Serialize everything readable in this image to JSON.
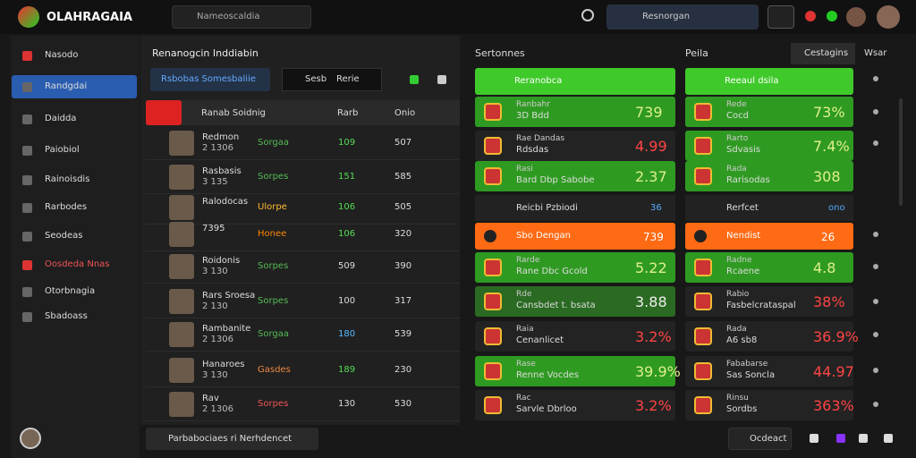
{
  "header": {
    "logo": "OLAHRAGAIA",
    "search": "Nameoscaldia",
    "tab": "Resnorgan"
  },
  "sidebar": {
    "items": [
      "Nasodo",
      "Randgdai",
      "Daidda",
      "Paiobiol",
      "Rainoisdis",
      "Rarbodes",
      "Seodeas",
      "Oosdeda Nnas",
      "Otorbnagia",
      "Sbadoass"
    ]
  },
  "middle": {
    "title": "Renanogcin Inddiabin",
    "filter": "Rsbobas Somesbaliie",
    "sort1": "Sesb",
    "sort2": "Rerie",
    "columns": [
      "Ranab Soidnig",
      "Rarb",
      "Onio"
    ],
    "rows": [
      {
        "name": "Redmon",
        "sub": "2 1306",
        "team": "Sorgaa",
        "v1": "109",
        "v2": "507"
      },
      {
        "name": "Rasbasis",
        "sub": "3 135",
        "team": "Sorpes",
        "v1": "151",
        "v2": "585"
      },
      {
        "name": "Ralodocas",
        "sub": "",
        "team": "Ulorpe",
        "v1": "106",
        "v2": "505"
      },
      {
        "name": "7395",
        "sub": "",
        "team": "Honee",
        "v1": "106",
        "v2": "320"
      },
      {
        "name": "Roidonis",
        "sub": "3 130",
        "team": "Sorpes",
        "v1": "509",
        "v2": "390"
      },
      {
        "name": "Rars Sroesa",
        "sub": "2 130",
        "team": "Sorpes",
        "v1": "100",
        "v2": "317"
      },
      {
        "name": "Rambanite",
        "sub": "2 1306",
        "team": "Sorgaa",
        "v1": "180",
        "v2": "539"
      },
      {
        "name": "Hanaroes",
        "sub": "3 130",
        "team": "Gasdes",
        "v1": "189",
        "v2": "230"
      },
      {
        "name": "Rav",
        "sub": "2 1306",
        "team": "Sorpes",
        "v1": "130",
        "v2": "530"
      }
    ],
    "footer": "Parbabociaes  ri  Nerhdencet"
  },
  "col1": {
    "title": "Sertonnes",
    "head1": "Reranobca",
    "group": "Reicbi Pzbiodi",
    "group_value": "36",
    "head2": "Sbo Dengan",
    "head2_value": "739",
    "cards": [
      {
        "name": "Ranbahr",
        "sub": "3D Bdd",
        "value": "739",
        "style": "green"
      },
      {
        "name": "Rae Dandas",
        "sub": "Rdsdas",
        "value": "4.99",
        "style": "dark"
      },
      {
        "name": "Rasi",
        "sub": "Bard Dbp Sabobe",
        "value": "2.37",
        "style": "green"
      },
      {
        "name": "Rarde",
        "sub": "Rane Dbc Gcold",
        "value": "5.22",
        "style": "green"
      },
      {
        "name": "Rde",
        "sub": "Cansbdet t. bsata",
        "value": "3.88",
        "style": "dgreen"
      },
      {
        "name": "Raia",
        "sub": "Cenanlicet",
        "value": "3.2%",
        "style": "dark"
      },
      {
        "name": "Rase",
        "sub": "Renne Vocdes",
        "value": "39.9%",
        "style": "green"
      },
      {
        "name": "Rac",
        "sub": "Sarvle Dbrloo",
        "value": "3.2%",
        "style": "dark"
      }
    ]
  },
  "col2": {
    "title": "Peila",
    "tab1": "Cestagins",
    "tab2": "Wsar",
    "head1": "Reeaul dsila",
    "group": "Rerfcet",
    "group_value": "ono",
    "head2": "Nendist",
    "head2_value": "26",
    "cards": [
      {
        "name": "Rede",
        "sub": "Cocd",
        "value": "73%",
        "style": "green"
      },
      {
        "name": "Rarto",
        "sub": "Sdvasis",
        "value": "7.4%",
        "style": "green"
      },
      {
        "name": "Rada",
        "sub": "Rarisodas",
        "value": "308",
        "style": "green"
      },
      {
        "name": "Radne",
        "sub": "Rcaene",
        "value": "4.8",
        "style": "green"
      },
      {
        "name": "Rabio",
        "sub": "Fasbelcrataspal",
        "value": "38%",
        "style": "dark"
      },
      {
        "name": "Rada",
        "sub": "A6 sb8",
        "value": "36.9%",
        "style": "dark"
      },
      {
        "name": "Fababarse",
        "sub": "Sas Soncla",
        "value": "44.97",
        "style": "dark"
      },
      {
        "name": "Rinsu",
        "sub": "Sordbs",
        "value": "363%",
        "style": "dark"
      }
    ]
  },
  "bottom": {
    "action": "Ocdeact"
  }
}
